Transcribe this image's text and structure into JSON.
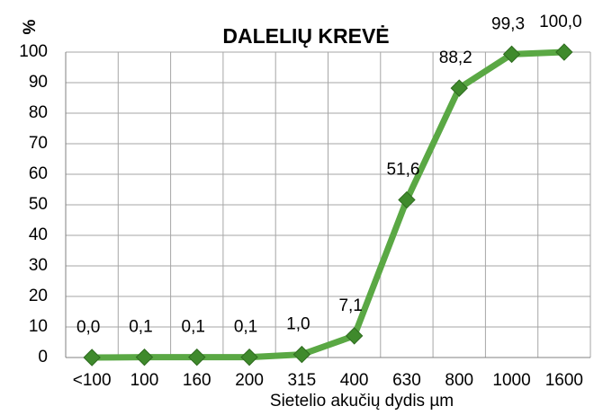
{
  "chart_data": {
    "type": "line",
    "title": "DALELIŲ KREVĖ",
    "y_label": "%",
    "x_label": "Sietelio akučių dydis µm",
    "categories": [
      "<100",
      "100",
      "160",
      "200",
      "315",
      "400",
      "630",
      "800",
      "1000",
      "1600"
    ],
    "values": [
      0,
      0.1,
      0.1,
      0.1,
      1.0,
      7.1,
      51.6,
      88.2,
      99.3,
      100.0
    ],
    "value_labels": [
      "0,0",
      "0,1",
      "0,1",
      "0,1",
      "1,0",
      "7,1",
      "51,6",
      "88,2",
      "99,3",
      "100,0"
    ],
    "color": "#5aa844",
    "marker_color": "#3f8a2c",
    "ylim": [
      0,
      100
    ],
    "yticks": [
      0,
      10,
      20,
      30,
      40,
      50,
      60,
      70,
      80,
      90,
      100
    ],
    "grid": true
  }
}
